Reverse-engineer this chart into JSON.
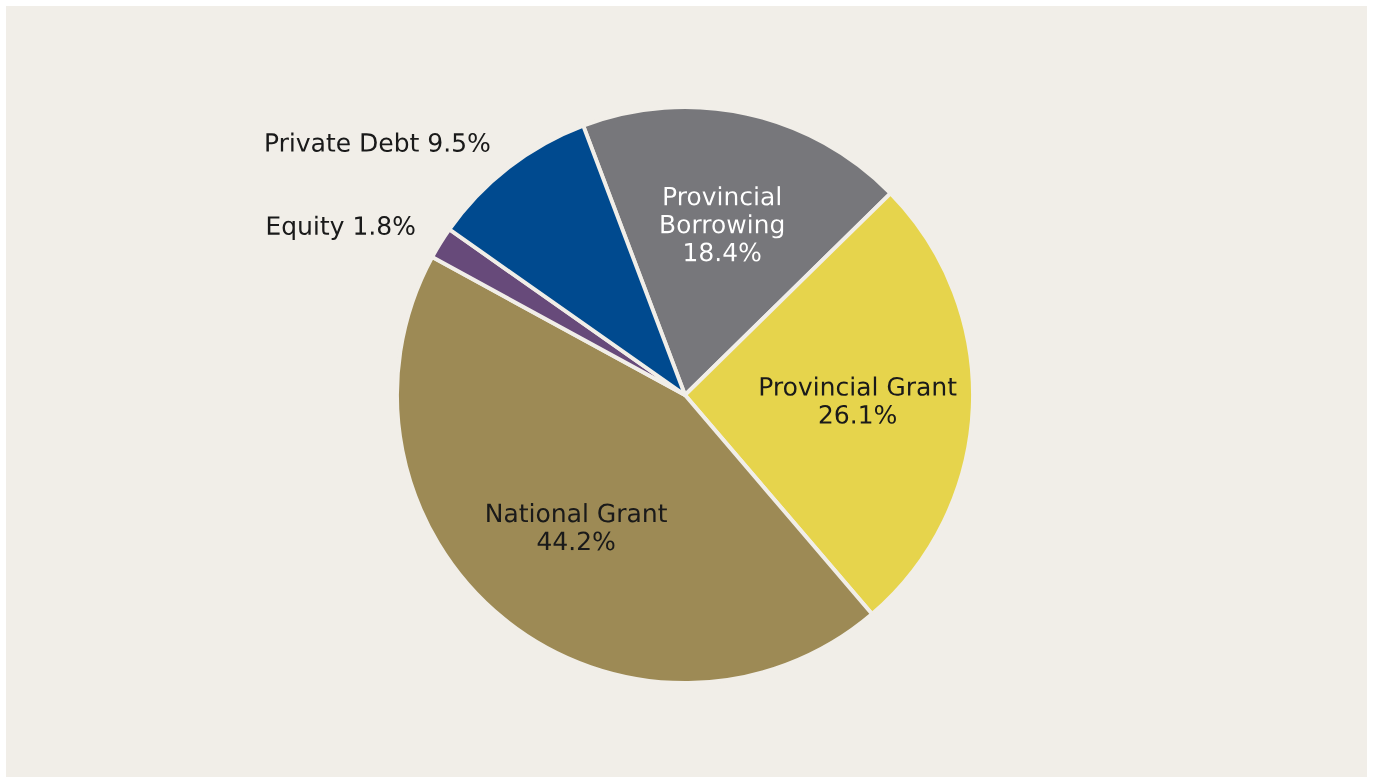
{
  "chart_data": {
    "type": "pie",
    "categories": [
      "Provincial\nBorrowing",
      "Provincial Grant",
      "National Grant",
      "Equity",
      "Private Debt"
    ],
    "values": [
      18.4,
      26.1,
      44.2,
      1.8,
      9.5
    ],
    "value_labels": [
      "18.4%",
      "26.1%",
      "44.2%",
      "1.8%",
      "9.5%"
    ],
    "colors": [
      "#77777b",
      "#e6d44c",
      "#9d8a55",
      "#674a7a",
      "#004a8f"
    ]
  }
}
